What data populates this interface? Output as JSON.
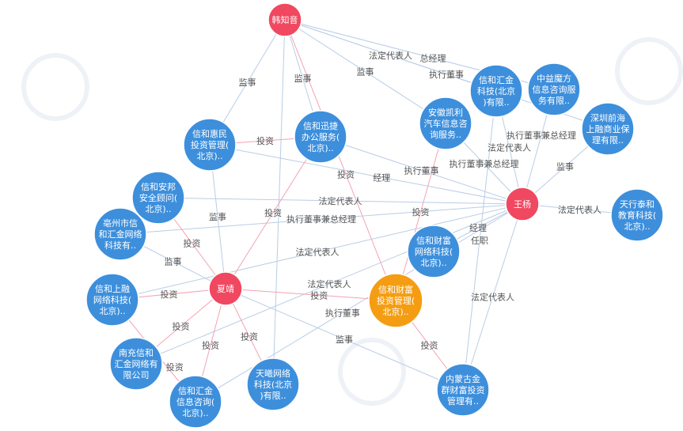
{
  "colors": {
    "company": "#3d8fdc",
    "person": "#f04860",
    "focus": "#f59d12",
    "edge": "#b9cde6",
    "edge_invest": "#f2a3b2"
  },
  "nodes": [
    {
      "id": "hzy",
      "type": "person",
      "lines": [
        "韩知音"
      ]
    },
    {
      "id": "wy",
      "type": "person",
      "lines": [
        "王杨"
      ]
    },
    {
      "id": "xj",
      "type": "person",
      "lines": [
        "夏靖"
      ]
    },
    {
      "id": "xhcf",
      "type": "focus",
      "lines": [
        "信和财富",
        "投资管理(",
        "北京).."
      ]
    },
    {
      "id": "xhhjkj",
      "type": "company",
      "lines": [
        "信和汇金",
        "科技(北京",
        ")有限.."
      ]
    },
    {
      "id": "zymf",
      "type": "company",
      "lines": [
        "中益魔方",
        "信息咨询服",
        "务有限.."
      ]
    },
    {
      "id": "szqh",
      "type": "company",
      "lines": [
        "深圳前海",
        "上融商业保",
        "理有限.."
      ]
    },
    {
      "id": "ahkl",
      "type": "company",
      "lines": [
        "安徽凯利",
        "汽车信息咨",
        "询服务.."
      ]
    },
    {
      "id": "xhxj",
      "type": "company",
      "lines": [
        "信和迅捷",
        "办公服务(",
        "北京).."
      ]
    },
    {
      "id": "xhhm",
      "type": "company",
      "lines": [
        "信和惠民",
        "投资管理(",
        "北京).."
      ]
    },
    {
      "id": "xhab",
      "type": "company",
      "lines": [
        "信和安邦",
        "安全顾问(",
        "北京).."
      ]
    },
    {
      "id": "bzs",
      "type": "company",
      "lines": [
        "亳州市信",
        "和汇金网络",
        "科技有.."
      ]
    },
    {
      "id": "xhsr",
      "type": "company",
      "lines": [
        "信和上融",
        "网络科技(",
        "北京).."
      ]
    },
    {
      "id": "ncxh",
      "type": "company",
      "lines": [
        "南充信和",
        "汇金网络有",
        "限公司"
      ]
    },
    {
      "id": "xhhjzx",
      "type": "company",
      "lines": [
        "信和汇金",
        "信息咨询(",
        "北京).."
      ]
    },
    {
      "id": "txwl",
      "type": "company",
      "lines": [
        "天曦网络",
        "科技(北京",
        ")有限.."
      ]
    },
    {
      "id": "xhcfwl",
      "type": "company",
      "lines": [
        "信和财富",
        "网络科技(",
        "北京).."
      ]
    },
    {
      "id": "txth",
      "type": "company",
      "lines": [
        "天行泰和",
        "教育科技(",
        "北京).."
      ]
    },
    {
      "id": "nmg",
      "type": "company",
      "lines": [
        "内蒙古金",
        "群财富投资",
        "管理有.."
      ]
    }
  ],
  "edges": [
    {
      "from": "hzy",
      "to": "xhhm",
      "label": "监事"
    },
    {
      "from": "hzy",
      "to": "xhxj",
      "label": "监事"
    },
    {
      "from": "hzy",
      "to": "ahkl",
      "label": "监事"
    },
    {
      "from": "hzy",
      "to": "xhhjkj",
      "label": "法定代表人"
    },
    {
      "from": "hzy",
      "to": "zymf",
      "label": "总经理"
    },
    {
      "from": "hzy",
      "to": "szqh",
      "label": "执行董事"
    },
    {
      "from": "hzy",
      "to": "xhcf",
      "label": "投资"
    },
    {
      "from": "hzy",
      "to": "txwl",
      "label": ""
    },
    {
      "from": "xhxj",
      "to": "xhhm",
      "label": "投资"
    },
    {
      "from": "xhcf",
      "to": "ahkl",
      "label": "投资"
    },
    {
      "from": "wy",
      "to": "ahkl",
      "label": "执行董事兼总经理"
    },
    {
      "from": "wy",
      "to": "xhhjkj",
      "label": "法定代表人"
    },
    {
      "from": "wy",
      "to": "zymf",
      "label": "执行董事兼总经理"
    },
    {
      "from": "wy",
      "to": "szqh",
      "label": "监事"
    },
    {
      "from": "wy",
      "to": "txth",
      "label": "法定代表人"
    },
    {
      "from": "wy",
      "to": "xhxj",
      "label": "执行董事"
    },
    {
      "from": "wy",
      "to": "xhhm",
      "label": "经理"
    },
    {
      "from": "wy",
      "to": "xhab",
      "label": "法定代表人"
    },
    {
      "from": "wy",
      "to": "bzs",
      "label": "执行董事兼总经理"
    },
    {
      "from": "wy",
      "to": "xhcfwl",
      "label": "经理"
    },
    {
      "from": "wy",
      "to": "xhsr",
      "label": "法定代表人"
    },
    {
      "from": "wy",
      "to": "xhhjzx",
      "label": "执行董事"
    },
    {
      "from": "wy",
      "to": "ncxh",
      "label": "法定代表人"
    },
    {
      "from": "wy",
      "to": "nmg",
      "label": "法定代表人"
    },
    {
      "from": "xj",
      "to": "xhhm",
      "label": "监事"
    },
    {
      "from": "xj",
      "to": "xhab",
      "label": "投资"
    },
    {
      "from": "xj",
      "to": "bzs",
      "label": "监事"
    },
    {
      "from": "xj",
      "to": "xhsr",
      "label": "投资"
    },
    {
      "from": "xj",
      "to": "ncxh",
      "label": "投资"
    },
    {
      "from": "xj",
      "to": "xhhjzx",
      "label": "投资"
    },
    {
      "from": "xj",
      "to": "txwl",
      "label": "投资"
    },
    {
      "from": "xj",
      "to": "xhxj",
      "label": "投资"
    },
    {
      "from": "xj",
      "to": "nmg",
      "label": "监事"
    },
    {
      "from": "xj",
      "to": "xhcf",
      "label": "投资"
    },
    {
      "from": "xhcf",
      "to": "nmg",
      "label": "投资"
    },
    {
      "from": "xhsr",
      "to": "xhhjzx",
      "label": "投资"
    },
    {
      "from": "nmg",
      "to": "xhhjkj",
      "label": "任职"
    }
  ]
}
